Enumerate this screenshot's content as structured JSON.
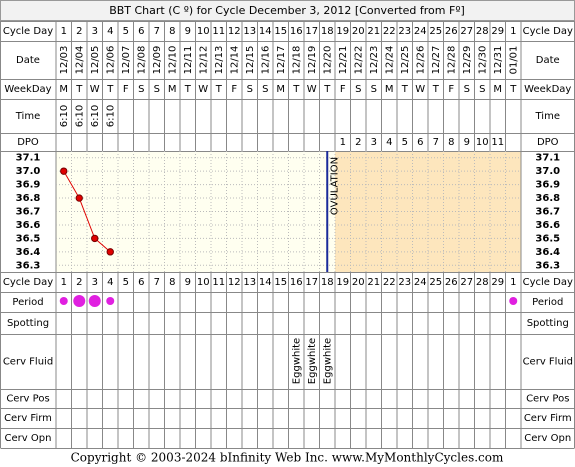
{
  "title": "BBT Chart (C º) for Cycle December 3, 2012  [Converted from Fº]",
  "footer": "Copyright © 2003-2024 bInfinity Web Inc.    www.MyMonthlyCycles.com",
  "row_labels": {
    "cycle_day": "Cycle Day",
    "date": "Date",
    "weekday": "WeekDay",
    "time": "Time",
    "dpo": "DPO",
    "period": "Period",
    "spotting": "Spotting",
    "cerv_fluid": "Cerv Fluid",
    "cerv_pos": "Cerv Pos",
    "cerv_firm": "Cerv Firm",
    "cerv_opn": "Cerv Opn"
  },
  "chart_data": {
    "type": "line",
    "categories": [
      "1",
      "2",
      "3",
      "4",
      "5",
      "6",
      "7",
      "8",
      "9",
      "10",
      "11",
      "12",
      "13",
      "14",
      "15",
      "16",
      "17",
      "18",
      "19",
      "20",
      "21",
      "22",
      "23",
      "24",
      "25",
      "26",
      "27",
      "28",
      "29",
      "1"
    ],
    "x": [
      "12/03",
      "12/04",
      "12/05",
      "12/06",
      "12/07",
      "12/08",
      "12/09",
      "12/10",
      "12/11",
      "12/12",
      "12/13",
      "12/14",
      "12/15",
      "12/16",
      "12/17",
      "12/18",
      "12/19",
      "12/20",
      "12/21",
      "12/22",
      "12/23",
      "12/24",
      "12/25",
      "12/26",
      "12/27",
      "12/28",
      "12/29",
      "12/30",
      "12/31",
      "01/01"
    ],
    "ylim": [
      36.25,
      37.15
    ],
    "yticks": [
      37.1,
      {
        "value": 37,
        "label": "37.0"
      },
      36.9,
      36.8,
      36.7,
      36.6,
      36.5,
      36.4,
      36.3
    ],
    "grid": true,
    "series": [
      {
        "color": "#e00000",
        "values": [
          37.0,
          36.8,
          36.5,
          36.4,
          null,
          null,
          null,
          null,
          null,
          null,
          null,
          null,
          null,
          null,
          null,
          null,
          null,
          null,
          null,
          null,
          null,
          null,
          null,
          null,
          null,
          null,
          null,
          null,
          null,
          null
        ]
      }
    ],
    "ovulation": {
      "label": "OVULATION",
      "day": 18
    }
  },
  "weekdays": [
    "M",
    "T",
    "W",
    "T",
    "F",
    "S",
    "S",
    "M",
    "T",
    "W",
    "T",
    "F",
    "S",
    "S",
    "M",
    "T",
    "W",
    "T",
    "F",
    "S",
    "S",
    "M",
    "T",
    "W",
    "T",
    "F",
    "S",
    "S",
    "M",
    "T"
  ],
  "times": [
    "6:10",
    "6:10",
    "6:10",
    "6:10",
    null,
    null,
    null,
    null,
    null,
    null,
    null,
    null,
    null,
    null,
    null,
    null,
    null,
    null,
    null,
    null,
    null,
    null,
    null,
    null,
    null,
    null,
    null,
    null,
    null,
    null
  ],
  "dpo": [
    null,
    null,
    null,
    null,
    null,
    null,
    null,
    null,
    null,
    null,
    null,
    null,
    null,
    null,
    null,
    null,
    null,
    null,
    1,
    2,
    3,
    4,
    5,
    6,
    7,
    8,
    9,
    10,
    11,
    null
  ],
  "cerv_fluid": [
    null,
    null,
    null,
    null,
    null,
    null,
    null,
    null,
    null,
    null,
    null,
    null,
    null,
    null,
    null,
    "Eggwhite",
    "Eggwhite",
    "Eggwhite",
    null,
    null,
    null,
    null,
    null,
    null,
    null,
    null,
    null,
    null,
    null,
    null
  ]
}
